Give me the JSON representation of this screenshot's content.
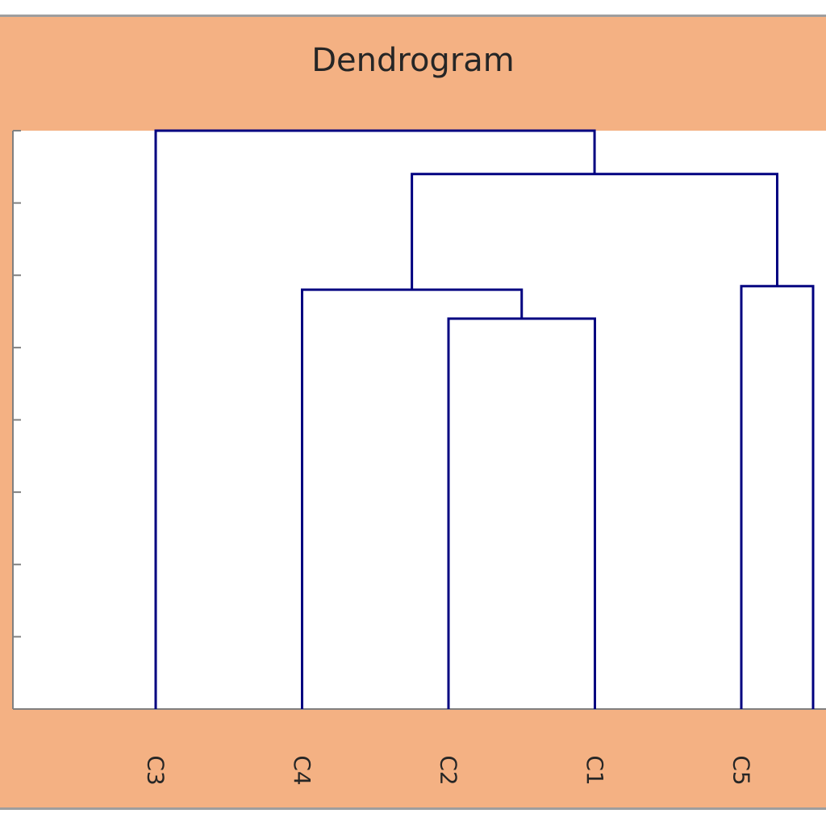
{
  "chart_data": {
    "type": "dendrogram",
    "title": "Dendrogram",
    "xlabel": "",
    "ylabel": "",
    "leaves": [
      "C3",
      "C4",
      "C2",
      "C1",
      "C5"
    ],
    "ylim": [
      0,
      8
    ],
    "grid": false,
    "merges": [
      {
        "left": "C2",
        "right": "C1",
        "height": 5.4
      },
      {
        "left": "C4",
        "right": "C2+C1",
        "height": 5.8
      },
      {
        "left": "C5",
        "right": "(off-screen)",
        "height": 5.85
      },
      {
        "left": "C4+C2+C1",
        "right": "C5 cluster",
        "height": 7.4
      },
      {
        "left": "C3",
        "right": "rest",
        "height": 8.0
      }
    ]
  },
  "colors": {
    "frame": "#f4b183",
    "plot_bg": "#ffffff",
    "lines": "#000080",
    "axis": "#808080",
    "border": "#9e9e9e"
  }
}
